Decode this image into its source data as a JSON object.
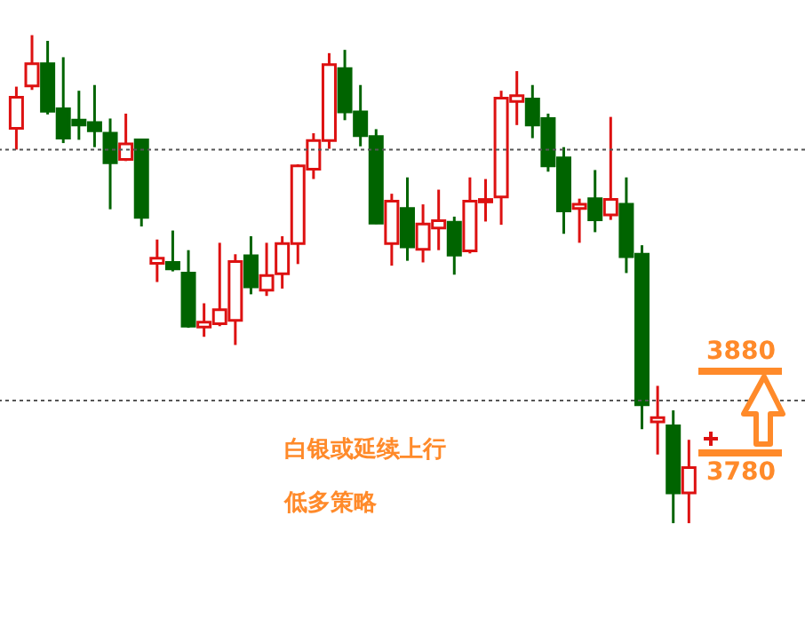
{
  "chart_data": {
    "type": "candlestick",
    "categories": [
      null,
      null,
      null,
      null,
      null,
      null,
      null,
      null,
      null,
      null,
      null,
      null,
      null,
      null,
      null,
      null,
      null,
      null,
      null,
      null,
      null,
      null,
      null,
      null,
      null,
      null,
      null,
      null,
      null,
      null,
      null,
      null,
      null,
      null,
      null,
      null,
      null,
      null,
      null,
      null,
      null,
      null,
      null,
      null
    ],
    "ohlc": [
      [
        4177,
        4228,
        4151,
        4215
      ],
      [
        4229,
        4291,
        4224,
        4256
      ],
      [
        4256,
        4284,
        4194,
        4198
      ],
      [
        4201,
        4264,
        4159,
        4165
      ],
      [
        4187,
        4223,
        4163,
        4181
      ],
      [
        4184,
        4230,
        4154,
        4174
      ],
      [
        4171,
        4189,
        4078,
        4135
      ],
      [
        4139,
        4195,
        4137,
        4158
      ],
      [
        4163,
        4164,
        4057,
        4068
      ],
      [
        4012,
        4041,
        3989,
        4018
      ],
      [
        4013,
        4052,
        4002,
        4005
      ],
      [
        4000,
        4028,
        3933,
        3935
      ],
      [
        3934,
        3963,
        3922,
        3940
      ],
      [
        3938,
        4037,
        3935,
        3955
      ],
      [
        3942,
        4023,
        3912,
        4014
      ],
      [
        4021,
        4045,
        3974,
        3983
      ],
      [
        3979,
        4037,
        3972,
        3997
      ],
      [
        3999,
        4045,
        3981,
        4036
      ],
      [
        4036,
        4133,
        4011,
        4131
      ],
      [
        4127,
        4171,
        4115,
        4162
      ],
      [
        4162,
        4269,
        4152,
        4255
      ],
      [
        4250,
        4273,
        4187,
        4197
      ],
      [
        4197,
        4230,
        4155,
        4168
      ],
      [
        4167,
        4176,
        4060,
        4061
      ],
      [
        4036,
        4097,
        4009,
        4088
      ],
      [
        4079,
        4117,
        4015,
        4032
      ],
      [
        4029,
        4084,
        4013,
        4060
      ],
      [
        4055,
        4102,
        4028,
        4064
      ],
      [
        4062,
        4069,
        3998,
        4022
      ],
      [
        4027,
        4117,
        4024,
        4088
      ],
      [
        4087,
        4115,
        4063,
        4090
      ],
      [
        4093,
        4223,
        4059,
        4214
      ],
      [
        4210,
        4247,
        4181,
        4217
      ],
      [
        4213,
        4230,
        4165,
        4181
      ],
      [
        4189,
        4195,
        4124,
        4131
      ],
      [
        4141,
        4154,
        4048,
        4076
      ],
      [
        4079,
        4091,
        4037,
        4084
      ],
      [
        4091,
        4126,
        4050,
        4065
      ],
      [
        4071,
        4191,
        4065,
        4090
      ],
      [
        4084,
        4117,
        4000,
        4020
      ],
      [
        4023,
        4034,
        3809,
        3839
      ],
      [
        3818,
        3862,
        3778,
        3823
      ],
      [
        3813,
        3832,
        3694,
        3731
      ],
      [
        3731,
        3796,
        3694,
        3762
      ]
    ],
    "colors": [
      "#dd1111",
      "#dd1111",
      "#006400",
      "#006400",
      "#006400",
      "#006400",
      "#006400",
      "#dd1111",
      "#006400",
      "#dd1111",
      "#006400",
      "#006400",
      "#dd1111",
      "#dd1111",
      "#dd1111",
      "#006400",
      "#dd1111",
      "#dd1111",
      "#dd1111",
      "#dd1111",
      "#dd1111",
      "#006400",
      "#006400",
      "#006400",
      "#dd1111",
      "#006400",
      "#dd1111",
      "#dd1111",
      "#006400",
      "#dd1111",
      "#dd1111",
      "#dd1111",
      "#dd1111",
      "#006400",
      "#006400",
      "#006400",
      "#dd1111",
      "#006400",
      "#dd1111",
      "#006400",
      "#006400",
      "#dd1111",
      "#006400",
      "#dd1111"
    ],
    "ylim": [
      3567,
      4334
    ],
    "ref_lines": [
      {
        "axis": "y",
        "value": 4151,
        "color": "#555555",
        "line_style": "dotted"
      },
      {
        "axis": "y",
        "value": 3844,
        "color": "#555555",
        "line_style": "dotted"
      },
      {
        "axis": "y",
        "value": 3880,
        "label": "3880",
        "color": "#ff8a2a"
      },
      {
        "axis": "y",
        "value": 3780,
        "label": "3780",
        "color": "#ff8a2a"
      }
    ],
    "annotations": [
      "白银或延续上行",
      "低多策略"
    ]
  }
}
